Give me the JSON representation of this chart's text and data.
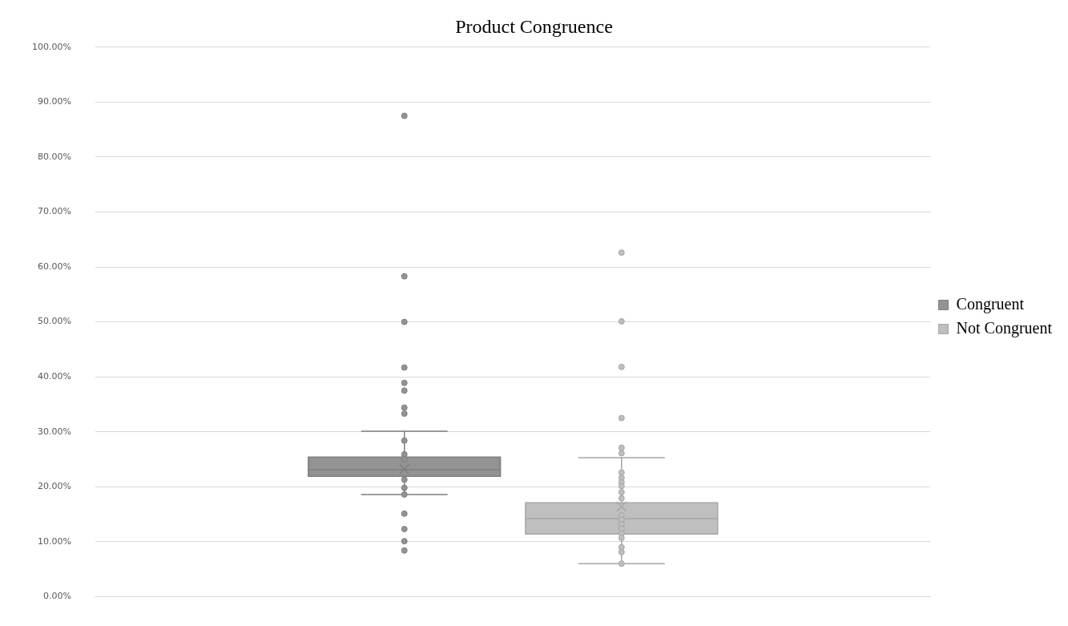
{
  "chart_data": {
    "type": "box",
    "title": "Product Congruence",
    "categories": [
      null
    ],
    "series": [
      {
        "name": "Congruent",
        "color": "#939393",
        "boxes": [
          {
            "low": 18.6,
            "q1": 21.9,
            "median": 23.1,
            "q3": 25.4,
            "high": 30.1,
            "mean": 23.2,
            "outliers": [
              87.5,
              58.3,
              50,
              41.7,
              38.9,
              37.5,
              34.4,
              33.3,
              28.4,
              25.9,
              25,
              21.3,
              19.8,
              18.6,
              15.1,
              12.3,
              10.1,
              8.4
            ]
          }
        ]
      },
      {
        "name": "Not Congruent",
        "color": "#bfbfbf",
        "boxes": [
          {
            "low": 6,
            "q1": 11.4,
            "median": 14.2,
            "q3": 17.1,
            "high": 25.3,
            "mean": 16.4,
            "outliers": [
              62.6,
              50.1,
              41.8,
              32.5,
              27.1,
              26.1,
              22.6,
              21.6,
              20.8,
              20.1,
              19,
              17.9,
              14.8,
              14,
              13.2,
              12.4,
              11.5,
              10.7,
              9,
              8.1,
              6
            ]
          }
        ]
      }
    ],
    "ylim": [
      0,
      100
    ],
    "yticks": [
      {
        "value": 0,
        "label": "0.00%"
      },
      {
        "value": 10,
        "label": "10.00%"
      },
      {
        "value": 20,
        "label": "20.00%"
      },
      {
        "value": 30,
        "label": "30.00%"
      },
      {
        "value": 40,
        "label": "40.00%"
      },
      {
        "value": 50,
        "label": "50.00%"
      },
      {
        "value": 60,
        "label": "60.00%"
      },
      {
        "value": 70,
        "label": "70.00%"
      },
      {
        "value": 80,
        "label": "80.00%"
      },
      {
        "value": 90,
        "label": "90.00%"
      },
      {
        "value": 100,
        "label": "100.00%"
      }
    ],
    "grid": "y",
    "legend": "right",
    "marker": "circle"
  }
}
